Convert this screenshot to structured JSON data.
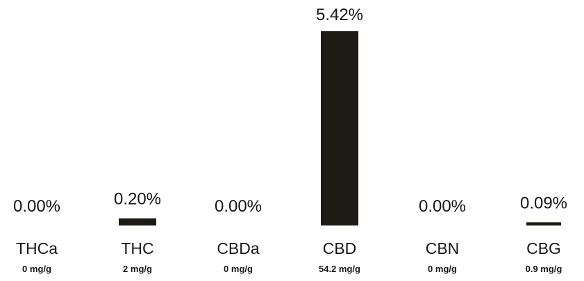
{
  "chart_data": {
    "type": "bar",
    "categories": [
      "THCa",
      "THC",
      "CBDa",
      "CBD",
      "CBN",
      "CBG"
    ],
    "values": [
      0.0,
      0.2,
      0.0,
      5.42,
      0.0,
      0.09
    ],
    "value_labels": [
      "0.00%",
      "0.20%",
      "0.00%",
      "5.42%",
      "0.00%",
      "0.09%"
    ],
    "sublabels": [
      "0 mg/g",
      "2 mg/g",
      "0 mg/g",
      "54.2 mg/g",
      "0 mg/g",
      "0.9 mg/g"
    ],
    "bar_color": "#1e1a16",
    "ylim": [
      0,
      5.42
    ],
    "grid": false,
    "legend": "none",
    "title": "",
    "xlabel": "",
    "ylabel": ""
  }
}
